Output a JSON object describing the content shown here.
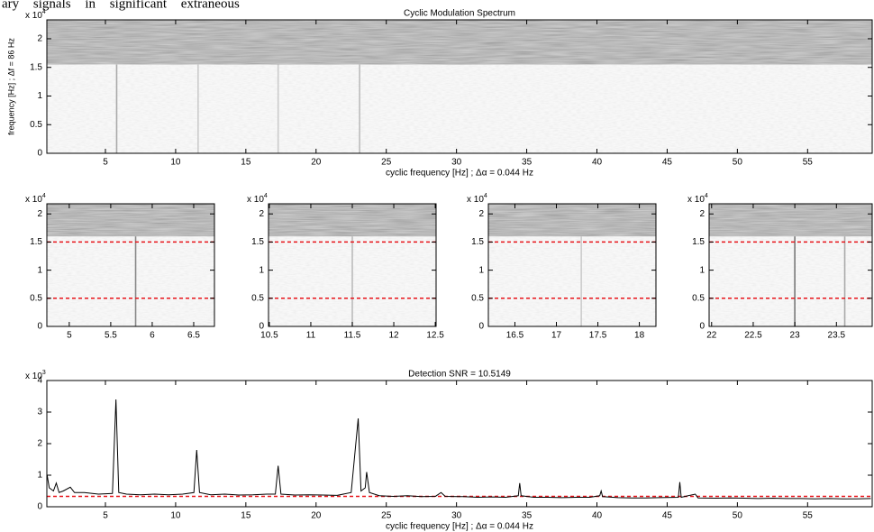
{
  "text_fragment": "ary signals in significant extraneous",
  "chart_data": [
    {
      "type": "spectrogram",
      "title": "Cyclic Modulation Spectrum",
      "x_label": "cyclic frequency [Hz] ; Δα = 0.044 Hz",
      "y_label": "frequency [Hz] ; Δf = 86 Hz",
      "y_multiplier": {
        "base": "x 10",
        "exponent": "4"
      },
      "xlim": [
        0.83,
        59.6
      ],
      "xticks": [
        5,
        10,
        15,
        20,
        25,
        30,
        35,
        40,
        45,
        50,
        55
      ],
      "ylim": [
        0,
        2.33
      ],
      "yticks": [
        0,
        0.5,
        1,
        1.5,
        2
      ],
      "noise_band_from": 1.55,
      "lines": [
        {
          "x": 5.8,
          "top": 1.55,
          "color": "#aaa"
        },
        {
          "x": 11.6,
          "top": 1.55,
          "color": "#ccc"
        },
        {
          "x": 17.3,
          "top": 1.55,
          "color": "#ccc"
        },
        {
          "x": 23.1,
          "top": 1.55,
          "color": "#bbb"
        }
      ]
    },
    {
      "type": "spectrogram",
      "y_multiplier": {
        "base": "x 10",
        "exponent": "4"
      },
      "xlim": [
        4.73,
        6.75
      ],
      "xticks": [
        5,
        5.5,
        6,
        6.5
      ],
      "ylim": [
        0,
        2.18
      ],
      "yticks": [
        0,
        0.5,
        1,
        1.5,
        2
      ],
      "noise_band_from": 1.6,
      "ref_lines": [
        0.5,
        1.5
      ],
      "ref_color": "#e8141a",
      "lines": [
        {
          "x": 5.8,
          "top": 1.6,
          "color": "#888"
        }
      ]
    },
    {
      "type": "spectrogram",
      "y_multiplier": {
        "base": "x 10",
        "exponent": "4"
      },
      "xlim": [
        10.49,
        12.51
      ],
      "xticks": [
        10.5,
        11,
        11.5,
        12,
        12.5
      ],
      "ylim": [
        0,
        2.18
      ],
      "yticks": [
        0,
        0.5,
        1,
        1.5,
        2
      ],
      "noise_band_from": 1.6,
      "ref_lines": [
        0.5,
        1.5
      ],
      "ref_color": "#e8141a",
      "lines": [
        {
          "x": 11.5,
          "top": 1.6,
          "color": "#bbb"
        }
      ]
    },
    {
      "type": "spectrogram",
      "y_multiplier": {
        "base": "x 10",
        "exponent": "4"
      },
      "xlim": [
        16.18,
        18.2
      ],
      "xticks": [
        16.5,
        17,
        17.5,
        18
      ],
      "ylim": [
        0,
        2.18
      ],
      "yticks": [
        0,
        0.5,
        1,
        1.5,
        2
      ],
      "noise_band_from": 1.6,
      "ref_lines": [
        0.5,
        1.5
      ],
      "ref_color": "#e8141a",
      "lines": [
        {
          "x": 17.3,
          "top": 1.6,
          "color": "#ccc"
        }
      ]
    },
    {
      "type": "spectrogram",
      "y_multiplier": {
        "base": "x 10",
        "exponent": "4"
      },
      "xlim": [
        21.97,
        23.93
      ],
      "xticks": [
        22,
        22.5,
        23,
        23.5
      ],
      "ylim": [
        0,
        2.18
      ],
      "yticks": [
        0,
        0.5,
        1,
        1.5,
        2
      ],
      "noise_band_from": 1.6,
      "ref_lines": [
        0.5,
        1.5
      ],
      "ref_color": "#e8141a",
      "lines": [
        {
          "x": 23.0,
          "top": 1.6,
          "color": "#777"
        },
        {
          "x": 23.6,
          "top": 1.6,
          "color": "#aaa"
        }
      ]
    },
    {
      "type": "line",
      "title": "Detection SNR = 10.5149",
      "x_label": "cyclic frequency [Hz] ; Δα = 0.044 Hz",
      "y_multiplier": {
        "base": "x 10",
        "exponent": "3"
      },
      "xlim": [
        0.83,
        59.6
      ],
      "xticks": [
        5,
        10,
        15,
        20,
        25,
        30,
        35,
        40,
        45,
        50,
        55
      ],
      "ylim": [
        0,
        4
      ],
      "yticks": [
        0,
        1,
        2,
        3,
        4
      ],
      "color": "#000",
      "threshold": 0.33,
      "threshold_color": "#e8141a",
      "x": [
        0.85,
        1.0,
        1.3,
        1.5,
        1.7,
        2.0,
        2.5,
        2.8,
        3.5,
        4.5,
        5.5,
        5.75,
        5.95,
        6.5,
        7.5,
        8.5,
        9.5,
        10.5,
        11.3,
        11.5,
        11.7,
        12.5,
        13.5,
        14.5,
        15.5,
        16.5,
        17.1,
        17.3,
        17.5,
        18.5,
        19.5,
        20.5,
        21.5,
        22.5,
        23.0,
        23.2,
        23.5,
        23.6,
        23.8,
        24.5,
        25.5,
        26.5,
        27.5,
        28.5,
        28.9,
        29.2,
        30.5,
        31.5,
        32.5,
        33.5,
        34.4,
        34.5,
        34.6,
        35.5,
        36.5,
        37.5,
        38.5,
        39.5,
        40.2,
        40.3,
        40.4,
        41.5,
        42.5,
        43.5,
        44.5,
        45.8,
        45.9,
        46.0,
        47.0,
        47.2,
        48.5,
        49.5,
        50.5,
        51.5,
        52.5,
        53.5,
        54.5,
        55.5,
        56.5,
        57.5,
        58.5,
        59.5
      ],
      "values": [
        1.0,
        0.6,
        0.5,
        0.75,
        0.45,
        0.5,
        0.62,
        0.45,
        0.45,
        0.4,
        0.42,
        3.4,
        0.45,
        0.4,
        0.38,
        0.4,
        0.38,
        0.4,
        0.45,
        1.8,
        0.45,
        0.38,
        0.4,
        0.37,
        0.38,
        0.4,
        0.4,
        1.3,
        0.4,
        0.37,
        0.38,
        0.37,
        0.36,
        0.45,
        2.8,
        0.5,
        0.6,
        1.1,
        0.45,
        0.35,
        0.33,
        0.35,
        0.32,
        0.33,
        0.45,
        0.33,
        0.32,
        0.3,
        0.31,
        0.3,
        0.35,
        0.75,
        0.35,
        0.3,
        0.3,
        0.29,
        0.3,
        0.3,
        0.35,
        0.5,
        0.32,
        0.29,
        0.28,
        0.28,
        0.29,
        0.3,
        0.78,
        0.3,
        0.4,
        0.28,
        0.27,
        0.28,
        0.27,
        0.26,
        0.27,
        0.26,
        0.26,
        0.25,
        0.26,
        0.25,
        0.25,
        0.26
      ]
    }
  ]
}
